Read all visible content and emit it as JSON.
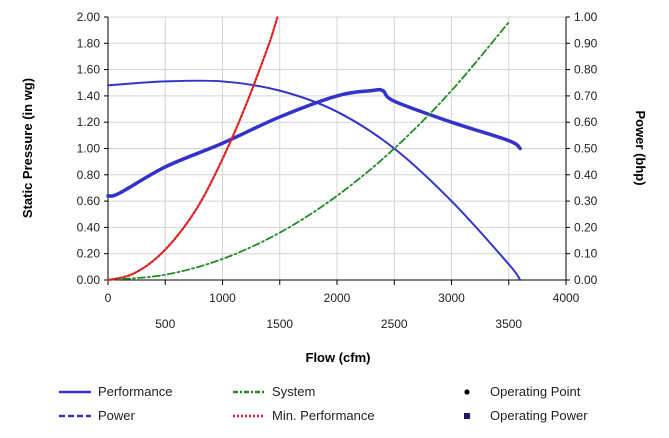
{
  "chart_data": {
    "type": "line",
    "xlabel": "Flow (cfm)",
    "ylabel_left": "Static Pressure (in wg)",
    "ylabel_right": "Power (bhp)",
    "xlim": [
      0,
      4000
    ],
    "ylim_left": [
      0,
      2.0
    ],
    "ylim_right": [
      0,
      1.0
    ],
    "x_ticks_top": [
      "0",
      "1000",
      "2000",
      "3000",
      "4000"
    ],
    "x_ticks_bottom": [
      "500",
      "1500",
      "2500",
      "3500"
    ],
    "y_ticks_left": [
      "0.00",
      "0.20",
      "0.40",
      "0.60",
      "0.80",
      "1.00",
      "1.20",
      "1.40",
      "1.60",
      "1.80",
      "2.00"
    ],
    "y_ticks_right": [
      "0.00",
      "0.10",
      "0.20",
      "0.30",
      "0.40",
      "0.50",
      "0.60",
      "0.70",
      "0.80",
      "0.90",
      "1.00"
    ],
    "grid": true,
    "legend_position": "bottom",
    "series": [
      {
        "name": "Performance",
        "axis": "left",
        "color": "#3333cc",
        "style": "solid",
        "x": [
          0,
          500,
          1000,
          1500,
          2000,
          2500,
          3000,
          3500,
          3600
        ],
        "y": [
          1.48,
          1.51,
          1.51,
          1.44,
          1.28,
          1.0,
          0.6,
          0.12,
          0.0
        ]
      },
      {
        "name": "Power",
        "axis": "right",
        "color": "#3333cc",
        "style": "solid-thick",
        "x": [
          0,
          100,
          500,
          1000,
          1500,
          2000,
          2300,
          2400,
          2500,
          3000,
          3500,
          3600
        ],
        "y": [
          0.32,
          0.33,
          0.43,
          0.52,
          0.62,
          0.7,
          0.72,
          0.72,
          0.68,
          0.6,
          0.53,
          0.5
        ]
      },
      {
        "name": "System",
        "axis": "left",
        "color": "#228b22",
        "style": "dash-dot",
        "x": [
          0,
          500,
          1000,
          1500,
          2000,
          2500,
          3000,
          3500
        ],
        "y": [
          0.0,
          0.04,
          0.16,
          0.36,
          0.64,
          1.0,
          1.44,
          1.96
        ]
      },
      {
        "name": "Min. Performance",
        "axis": "left",
        "color": "#dd2222",
        "style": "dotted",
        "x": [
          0,
          200,
          400,
          600,
          800,
          1000,
          1200,
          1400,
          1480
        ],
        "y": [
          0.0,
          0.04,
          0.15,
          0.33,
          0.58,
          0.92,
          1.32,
          1.78,
          2.0
        ]
      }
    ],
    "legend": [
      {
        "name": "Performance",
        "symbol": "line-solid",
        "color": "#3333cc"
      },
      {
        "name": "System",
        "symbol": "line-dashdot",
        "color": "#228b22"
      },
      {
        "name": "Operating Point",
        "symbol": "dot",
        "color": "#000000"
      },
      {
        "name": "Power",
        "symbol": "line-dashed",
        "color": "#3333cc"
      },
      {
        "name": "Min. Performance",
        "symbol": "line-dotted",
        "color": "#dd2222"
      },
      {
        "name": "Operating Power",
        "symbol": "square",
        "color": "#1a1a6e"
      }
    ]
  }
}
